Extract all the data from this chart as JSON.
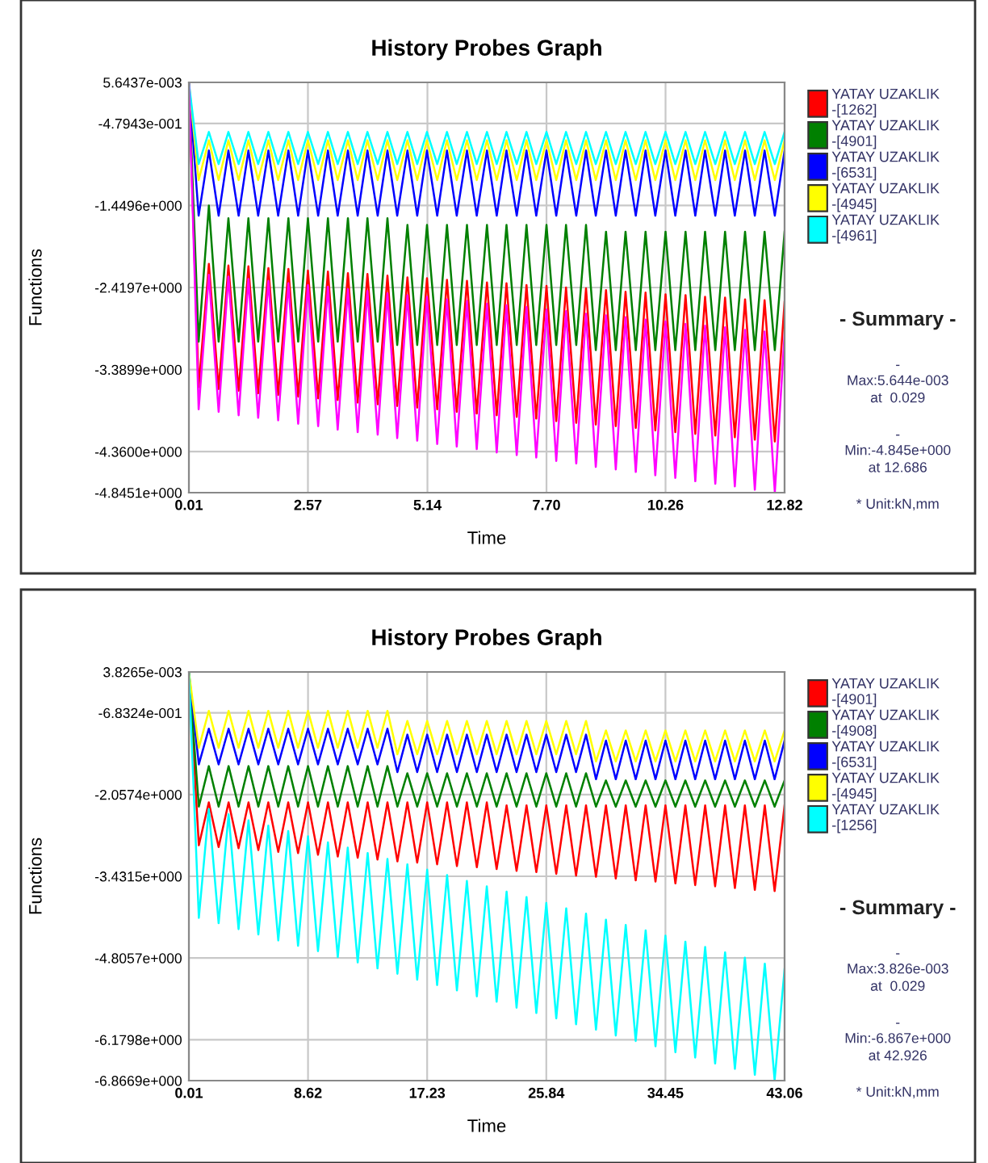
{
  "chart_data": [
    {
      "type": "line",
      "title": "History Probes Graph",
      "xlabel": "Time",
      "ylabel": "Functions",
      "grid": true,
      "legend": "right",
      "xlim": [
        0.01,
        12.82
      ],
      "xticks": [
        0.01,
        2.57,
        5.14,
        {
          "value": 7.7,
          "label": "7.70"
        },
        10.26,
        12.82
      ],
      "ylim": [
        -4.8451,
        0.0056437
      ],
      "yticks": [
        {
          "value": 0.0056437,
          "label": "5.6437e-003"
        },
        {
          "value": -0.47943,
          "label": "-4.7943e-001"
        },
        {
          "value": -1.4496,
          "label": "-1.4496e+000"
        },
        {
          "value": -2.4197,
          "label": "-2.4197e+000"
        },
        {
          "value": -3.3899,
          "label": "-3.3899e+000"
        },
        {
          "value": -4.36,
          "label": "-4.3600e+000"
        },
        {
          "value": -4.8451,
          "label": "-4.8451e+000"
        }
      ],
      "annotations": [
        "- Summary -",
        "-",
        "Max:5.644e-003\nat  0.029",
        "-",
        "Min:-4.845e+000\nat 12.686",
        "* Unit:kN,mm"
      ],
      "x": [
        0.01,
        0.22,
        0.44,
        0.65,
        0.86,
        1.08,
        1.29,
        1.5,
        1.72,
        1.93,
        2.15,
        2.36,
        2.57,
        2.79,
        3.0,
        3.21,
        3.43,
        3.64,
        3.85,
        4.07,
        4.28,
        4.49,
        4.71,
        4.92,
        5.13,
        5.35,
        5.56,
        5.77,
        5.99,
        6.2,
        6.42,
        6.63,
        6.84,
        7.06,
        7.27,
        7.48,
        7.7,
        7.91,
        8.12,
        8.34,
        8.55,
        8.76,
        8.98,
        9.19,
        9.4,
        9.62,
        9.83,
        10.04,
        10.26,
        10.47,
        10.69,
        10.9,
        11.11,
        11.33,
        11.54,
        11.75,
        11.97,
        12.18,
        12.39,
        12.61,
        12.82
      ],
      "series": [
        {
          "name": "YATAY UZAKLIK -[1262]",
          "color": "#ff0000",
          "values": [
            0.0,
            -3.6,
            -2.14,
            -3.62,
            -2.16,
            -3.64,
            -2.17,
            -3.67,
            -2.19,
            -3.69,
            -2.2,
            -3.71,
            -2.22,
            -3.73,
            -2.23,
            -3.75,
            -2.25,
            -3.78,
            -2.26,
            -3.8,
            -2.28,
            -3.82,
            -2.3,
            -3.84,
            -2.31,
            -3.86,
            -2.33,
            -3.89,
            -2.34,
            -3.91,
            -2.36,
            -3.93,
            -2.37,
            -3.95,
            -2.39,
            -3.97,
            -2.4,
            -4.0,
            -2.42,
            -4.02,
            -2.43,
            -4.04,
            -2.45,
            -4.06,
            -2.47,
            -4.08,
            -2.48,
            -4.11,
            -2.5,
            -4.13,
            -2.51,
            -4.15,
            -2.53,
            -4.17,
            -2.54,
            -4.19,
            -2.56,
            -4.22,
            -2.57,
            -4.24,
            -2.59
          ]
        },
        {
          "name": "YATAY UZAKLIK -[4901]",
          "color": "#008000",
          "values": [
            0.0,
            -3.06,
            -1.45,
            -3.06,
            -1.6,
            -3.06,
            -1.6,
            -3.06,
            -1.6,
            -3.06,
            -1.6,
            -3.06,
            -1.6,
            -3.06,
            -1.6,
            -3.06,
            -1.6,
            -3.06,
            -1.6,
            -3.06,
            -1.6,
            -3.1,
            -1.68,
            -3.1,
            -1.68,
            -3.1,
            -1.68,
            -3.1,
            -1.68,
            -3.1,
            -1.68,
            -3.1,
            -1.68,
            -3.1,
            -1.68,
            -3.1,
            -1.68,
            -3.1,
            -1.68,
            -3.1,
            -1.68,
            -3.16,
            -1.76,
            -3.16,
            -1.76,
            -3.16,
            -1.76,
            -3.16,
            -1.76,
            -3.16,
            -1.76,
            -3.16,
            -1.76,
            -3.16,
            -1.76,
            -3.16,
            -1.76,
            -3.16,
            -1.76,
            -3.16,
            -1.76
          ]
        },
        {
          "name": "YATAY UZAKLIK -[6531]",
          "color": "#0000ff",
          "values": [
            0.0,
            -1.57,
            -0.8,
            -1.57,
            -0.8,
            -1.57,
            -0.8,
            -1.57,
            -0.8,
            -1.57,
            -0.8,
            -1.57,
            -0.8,
            -1.57,
            -0.8,
            -1.57,
            -0.8,
            -1.57,
            -0.8,
            -1.57,
            -0.8,
            -1.57,
            -0.8,
            -1.57,
            -0.8,
            -1.57,
            -0.8,
            -1.57,
            -0.8,
            -1.57,
            -0.8,
            -1.57,
            -0.8,
            -1.57,
            -0.8,
            -1.57,
            -0.8,
            -1.57,
            -0.8,
            -1.57,
            -0.8,
            -1.57,
            -0.8,
            -1.57,
            -0.8,
            -1.57,
            -0.8,
            -1.57,
            -0.8,
            -1.57,
            -0.8,
            -1.57,
            -0.8,
            -1.57,
            -0.8,
            -1.57,
            -0.8,
            -1.57,
            -0.8,
            -1.57,
            -0.8
          ]
        },
        {
          "name": "YATAY UZAKLIK -[4945]",
          "color": "#ffff00",
          "values": [
            0.0,
            -1.15,
            -0.68,
            -1.15,
            -0.68,
            -1.15,
            -0.68,
            -1.15,
            -0.68,
            -1.15,
            -0.68,
            -1.15,
            -0.68,
            -1.15,
            -0.68,
            -1.15,
            -0.68,
            -1.15,
            -0.68,
            -1.15,
            -0.68,
            -1.15,
            -0.68,
            -1.15,
            -0.68,
            -1.15,
            -0.68,
            -1.15,
            -0.68,
            -1.15,
            -0.68,
            -1.15,
            -0.68,
            -1.15,
            -0.68,
            -1.15,
            -0.68,
            -1.15,
            -0.68,
            -1.15,
            -0.68,
            -1.15,
            -0.68,
            -1.15,
            -0.68,
            -1.15,
            -0.68,
            -1.15,
            -0.68,
            -1.15,
            -0.68,
            -1.15,
            -0.68,
            -1.15,
            -0.68,
            -1.15,
            -0.68,
            -1.15,
            -0.68,
            -1.15,
            -0.68
          ]
        },
        {
          "name": "YATAY UZAKLIK -[4961]",
          "color": "#00ffff",
          "values": [
            0.0,
            -0.96,
            -0.58,
            -0.96,
            -0.58,
            -0.96,
            -0.58,
            -0.96,
            -0.58,
            -0.96,
            -0.58,
            -0.96,
            -0.58,
            -0.96,
            -0.58,
            -0.96,
            -0.58,
            -0.96,
            -0.58,
            -0.96,
            -0.58,
            -0.96,
            -0.58,
            -0.96,
            -0.58,
            -0.96,
            -0.58,
            -0.96,
            -0.58,
            -0.96,
            -0.58,
            -0.96,
            -0.58,
            -0.96,
            -0.58,
            -0.96,
            -0.58,
            -0.96,
            -0.58,
            -0.96,
            -0.58,
            -0.96,
            -0.58,
            -0.96,
            -0.58,
            -0.96,
            -0.58,
            -0.96,
            -0.58,
            -0.96,
            -0.58,
            -0.96,
            -0.58,
            -0.96,
            -0.58,
            -0.96,
            -0.58,
            -0.96,
            -0.58,
            -0.96,
            -0.58
          ]
        },
        {
          "color": "#ff00ff",
          "values": [
            0.0,
            -3.86,
            -2.27,
            -3.89,
            -2.29,
            -3.93,
            -2.32,
            -3.96,
            -2.34,
            -3.99,
            -2.37,
            -4.03,
            -2.39,
            -4.06,
            -2.41,
            -4.1,
            -2.44,
            -4.13,
            -2.46,
            -4.16,
            -2.49,
            -4.2,
            -2.51,
            -4.23,
            -2.53,
            -4.27,
            -2.56,
            -4.3,
            -2.58,
            -4.33,
            -2.61,
            -4.37,
            -2.63,
            -4.4,
            -2.65,
            -4.43,
            -2.68,
            -4.47,
            -2.7,
            -4.5,
            -2.73,
            -4.54,
            -2.75,
            -4.57,
            -2.77,
            -4.6,
            -2.8,
            -4.64,
            -2.82,
            -4.67,
            -2.85,
            -4.71,
            -2.87,
            -4.74,
            -2.89,
            -4.77,
            -2.92,
            -4.81,
            -2.94,
            -4.84,
            -2.97
          ]
        }
      ]
    },
    {
      "type": "line",
      "title": "History Probes Graph",
      "xlabel": "Time",
      "ylabel": "Functions",
      "grid": true,
      "legend": "right",
      "xlim": [
        0.01,
        43.06
      ],
      "xticks": [
        0.01,
        8.62,
        17.23,
        25.84,
        34.45,
        43.06
      ],
      "ylim": [
        -6.8669,
        0.0038265
      ],
      "yticks": [
        {
          "value": 0.0038265,
          "label": "3.8265e-003"
        },
        {
          "value": -0.68324,
          "label": "-6.8324e-001"
        },
        {
          "value": -2.0574,
          "label": "-2.0574e+000"
        },
        {
          "value": -3.4315,
          "label": "-3.4315e+000"
        },
        {
          "value": -4.8057,
          "label": "-4.8057e+000"
        },
        {
          "value": -6.1798,
          "label": "-6.1798e+000"
        },
        {
          "value": -6.8669,
          "label": "-6.8669e+000"
        }
      ],
      "annotations": [
        "- Summary -",
        "-",
        "Max:3.826e-003\nat  0.029",
        "-",
        "Min:-6.867e+000\nat 42.926",
        "* Unit:kN,mm"
      ],
      "x": [
        0.01,
        0.73,
        1.45,
        2.16,
        2.88,
        3.6,
        4.32,
        5.03,
        5.75,
        6.47,
        7.19,
        7.9,
        8.62,
        9.34,
        10.06,
        10.77,
        11.49,
        12.21,
        12.93,
        13.64,
        14.36,
        15.08,
        15.8,
        16.51,
        17.23,
        17.95,
        18.67,
        19.38,
        20.1,
        20.82,
        21.54,
        22.25,
        22.97,
        23.69,
        24.41,
        25.12,
        25.84,
        26.56,
        27.28,
        27.99,
        28.71,
        29.43,
        30.15,
        30.86,
        31.58,
        32.3,
        33.02,
        33.73,
        34.45,
        35.17,
        35.89,
        36.6,
        37.32,
        38.04,
        38.76,
        39.47,
        40.19,
        40.91,
        41.63,
        42.34,
        43.06
      ],
      "series": [
        {
          "name": "YATAY UZAKLIK -[4901]",
          "color": "#ff0000",
          "values": [
            0.0,
            -2.91,
            -2.19,
            -2.94,
            -2.19,
            -2.96,
            -2.19,
            -2.99,
            -2.19,
            -3.02,
            -2.19,
            -3.04,
            -2.19,
            -3.07,
            -2.19,
            -3.1,
            -2.19,
            -3.12,
            -2.19,
            -3.15,
            -2.19,
            -3.18,
            -2.19,
            -3.2,
            -2.19,
            -3.23,
            -2.19,
            -3.26,
            -2.19,
            -3.28,
            -2.19,
            -3.31,
            -2.24,
            -3.34,
            -2.24,
            -3.36,
            -2.24,
            -3.39,
            -2.24,
            -3.42,
            -2.24,
            -3.44,
            -2.24,
            -3.47,
            -2.24,
            -3.5,
            -2.24,
            -3.52,
            -2.24,
            -3.55,
            -2.24,
            -3.58,
            -2.24,
            -3.6,
            -2.24,
            -3.63,
            -2.24,
            -3.66,
            -2.24,
            -3.68,
            -2.24
          ]
        },
        {
          "name": "YATAY UZAKLIK -[4908]",
          "color": "#008000",
          "values": [
            0.0,
            -2.26,
            -1.58,
            -2.26,
            -1.58,
            -2.26,
            -1.58,
            -2.26,
            -1.58,
            -2.26,
            -1.58,
            -2.26,
            -1.58,
            -2.26,
            -1.58,
            -2.26,
            -1.58,
            -2.26,
            -1.58,
            -2.26,
            -1.58,
            -2.26,
            -1.7,
            -2.26,
            -1.7,
            -2.26,
            -1.7,
            -2.26,
            -1.7,
            -2.26,
            -1.7,
            -2.26,
            -1.7,
            -2.26,
            -1.7,
            -2.26,
            -1.7,
            -2.26,
            -1.7,
            -2.26,
            -1.7,
            -2.26,
            -1.82,
            -2.26,
            -1.82,
            -2.26,
            -1.82,
            -2.26,
            -1.82,
            -2.26,
            -1.82,
            -2.26,
            -1.82,
            -2.26,
            -1.82,
            -2.26,
            -1.82,
            -2.26,
            -1.82,
            -2.26,
            -1.82
          ]
        },
        {
          "name": "YATAY UZAKLIK -[6531]",
          "color": "#0000ff",
          "values": [
            0.0,
            -1.55,
            -0.95,
            -1.55,
            -0.95,
            -1.55,
            -0.95,
            -1.55,
            -0.95,
            -1.55,
            -0.95,
            -1.55,
            -0.95,
            -1.55,
            -0.95,
            -1.55,
            -0.95,
            -1.55,
            -0.95,
            -1.55,
            -0.95,
            -1.68,
            -1.05,
            -1.68,
            -1.05,
            -1.68,
            -1.05,
            -1.68,
            -1.05,
            -1.68,
            -1.05,
            -1.68,
            -1.05,
            -1.68,
            -1.05,
            -1.68,
            -1.05,
            -1.68,
            -1.05,
            -1.68,
            -1.05,
            -1.8,
            -1.15,
            -1.8,
            -1.15,
            -1.8,
            -1.15,
            -1.8,
            -1.15,
            -1.8,
            -1.15,
            -1.8,
            -1.15,
            -1.8,
            -1.15,
            -1.8,
            -1.15,
            -1.8,
            -1.15,
            -1.8,
            -1.15
          ]
        },
        {
          "name": "YATAY UZAKLIK -[4945]",
          "color": "#ffff00",
          "values": [
            0.0,
            -1.27,
            -0.65,
            -1.27,
            -0.65,
            -1.27,
            -0.65,
            -1.27,
            -0.65,
            -1.27,
            -0.65,
            -1.27,
            -0.65,
            -1.27,
            -0.65,
            -1.27,
            -0.65,
            -1.27,
            -0.65,
            -1.27,
            -0.65,
            -1.38,
            -0.82,
            -1.38,
            -0.82,
            -1.38,
            -0.82,
            -1.38,
            -0.82,
            -1.38,
            -0.82,
            -1.38,
            -0.82,
            -1.38,
            -0.82,
            -1.38,
            -0.82,
            -1.38,
            -0.82,
            -1.38,
            -0.82,
            -1.5,
            -0.98,
            -1.5,
            -0.98,
            -1.5,
            -0.98,
            -1.5,
            -0.98,
            -1.5,
            -0.98,
            -1.5,
            -0.98,
            -1.5,
            -0.98,
            -1.5,
            -0.98,
            -1.5,
            -0.98,
            -1.5,
            -0.98
          ]
        },
        {
          "name": "YATAY UZAKLIK -[1256]",
          "color": "#00ffff",
          "values": [
            0.0,
            -4.13,
            -2.3,
            -4.22,
            -2.39,
            -4.32,
            -2.49,
            -4.41,
            -2.58,
            -4.51,
            -2.67,
            -4.6,
            -2.76,
            -4.69,
            -2.86,
            -4.79,
            -2.95,
            -4.88,
            -3.04,
            -4.98,
            -3.14,
            -5.07,
            -3.23,
            -5.17,
            -3.32,
            -5.26,
            -3.41,
            -5.35,
            -3.51,
            -5.45,
            -3.6,
            -5.54,
            -3.69,
            -5.64,
            -3.78,
            -5.73,
            -3.88,
            -5.82,
            -3.97,
            -5.92,
            -4.06,
            -6.01,
            -4.16,
            -6.11,
            -4.25,
            -6.2,
            -4.34,
            -6.29,
            -4.43,
            -6.39,
            -4.53,
            -6.48,
            -4.62,
            -6.58,
            -4.71,
            -6.67,
            -4.8,
            -6.77,
            -4.9,
            -6.86,
            -4.99
          ]
        }
      ]
    }
  ]
}
